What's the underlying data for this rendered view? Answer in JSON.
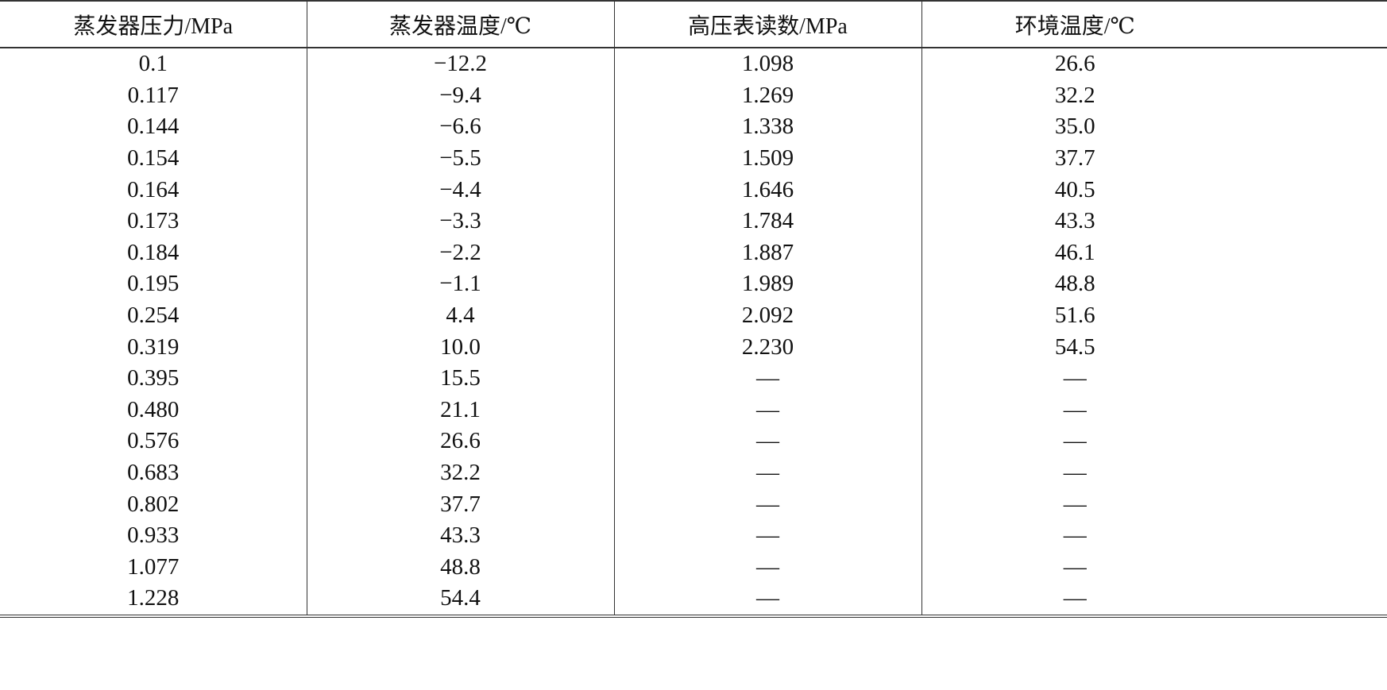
{
  "table": {
    "headers": [
      "蒸发器压力/MPa",
      "蒸发器温度/℃",
      "高压表读数/MPa",
      "环境温度/℃"
    ],
    "rows": [
      [
        "0.1",
        "−12.2",
        "1.098",
        "26.6"
      ],
      [
        "0.117",
        "−9.4",
        "1.269",
        "32.2"
      ],
      [
        "0.144",
        "−6.6",
        "1.338",
        "35.0"
      ],
      [
        "0.154",
        "−5.5",
        "1.509",
        "37.7"
      ],
      [
        "0.164",
        "−4.4",
        "1.646",
        "40.5"
      ],
      [
        "0.173",
        "−3.3",
        "1.784",
        "43.3"
      ],
      [
        "0.184",
        "−2.2",
        "1.887",
        "46.1"
      ],
      [
        "0.195",
        "−1.1",
        "1.989",
        "48.8"
      ],
      [
        "0.254",
        "4.4",
        "2.092",
        "51.6"
      ],
      [
        "0.319",
        "10.0",
        "2.230",
        "54.5"
      ],
      [
        "0.395",
        "15.5",
        "—",
        "—"
      ],
      [
        "0.480",
        "21.1",
        "—",
        "—"
      ],
      [
        "0.576",
        "26.6",
        "—",
        "—"
      ],
      [
        "0.683",
        "32.2",
        "—",
        "—"
      ],
      [
        "0.802",
        "37.7",
        "—",
        "—"
      ],
      [
        "0.933",
        "43.3",
        "—",
        "—"
      ],
      [
        "1.077",
        "48.8",
        "—",
        "—"
      ],
      [
        "1.228",
        "54.4",
        "—",
        "—"
      ]
    ]
  }
}
